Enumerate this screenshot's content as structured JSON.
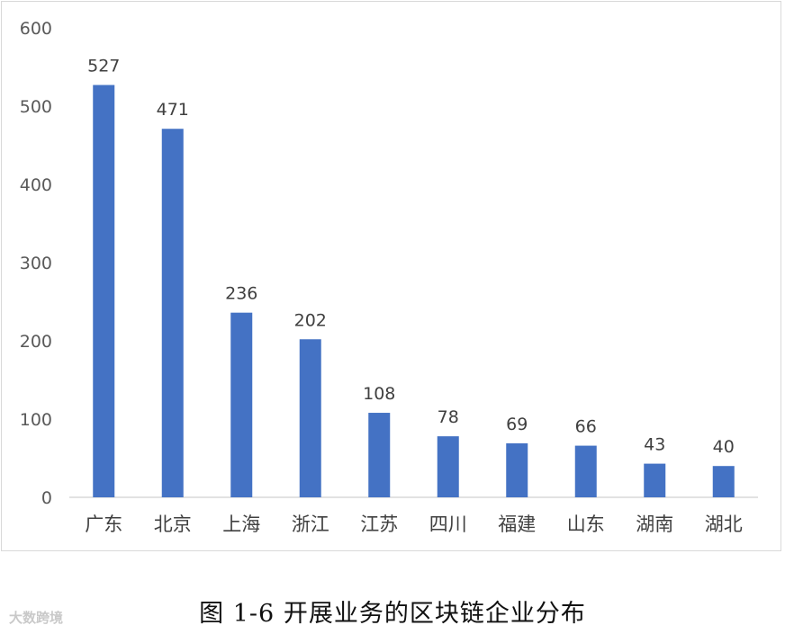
{
  "caption": "图 1-6 开展业务的区块链企业分布",
  "watermark": "大数跨境",
  "chart_data": {
    "type": "bar",
    "title": "",
    "xlabel": "",
    "ylabel": "",
    "categories": [
      "广东",
      "北京",
      "上海",
      "浙江",
      "江苏",
      "四川",
      "福建",
      "山东",
      "湖南",
      "湖北"
    ],
    "values": [
      527,
      471,
      236,
      202,
      108,
      78,
      69,
      66,
      43,
      40
    ],
    "ylim": [
      0,
      600
    ],
    "yticks": [
      0,
      100,
      200,
      300,
      400,
      500,
      600
    ],
    "grid": false,
    "legend": "none",
    "bar_color": "#4472C4",
    "data_labels": true
  }
}
